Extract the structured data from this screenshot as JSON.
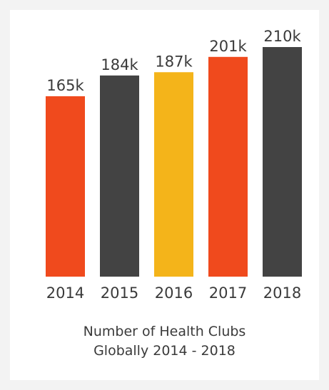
{
  "chart_data": {
    "type": "bar",
    "categories": [
      "2014",
      "2015",
      "2016",
      "2017",
      "2018"
    ],
    "values": [
      165,
      184,
      187,
      201,
      210
    ],
    "value_labels": [
      "165k",
      "184k",
      "187k",
      "201k",
      "210k"
    ],
    "colors": [
      "#f04a1d",
      "#434343",
      "#f4b41a",
      "#f04a1d",
      "#434343"
    ],
    "title": "",
    "xlabel": "",
    "ylabel": "",
    "ylim": [
      0,
      210
    ],
    "grid": false,
    "legend": "none"
  },
  "caption": {
    "line1": "Number of Health Clubs",
    "line2": "Globally 2014 - 2018"
  }
}
